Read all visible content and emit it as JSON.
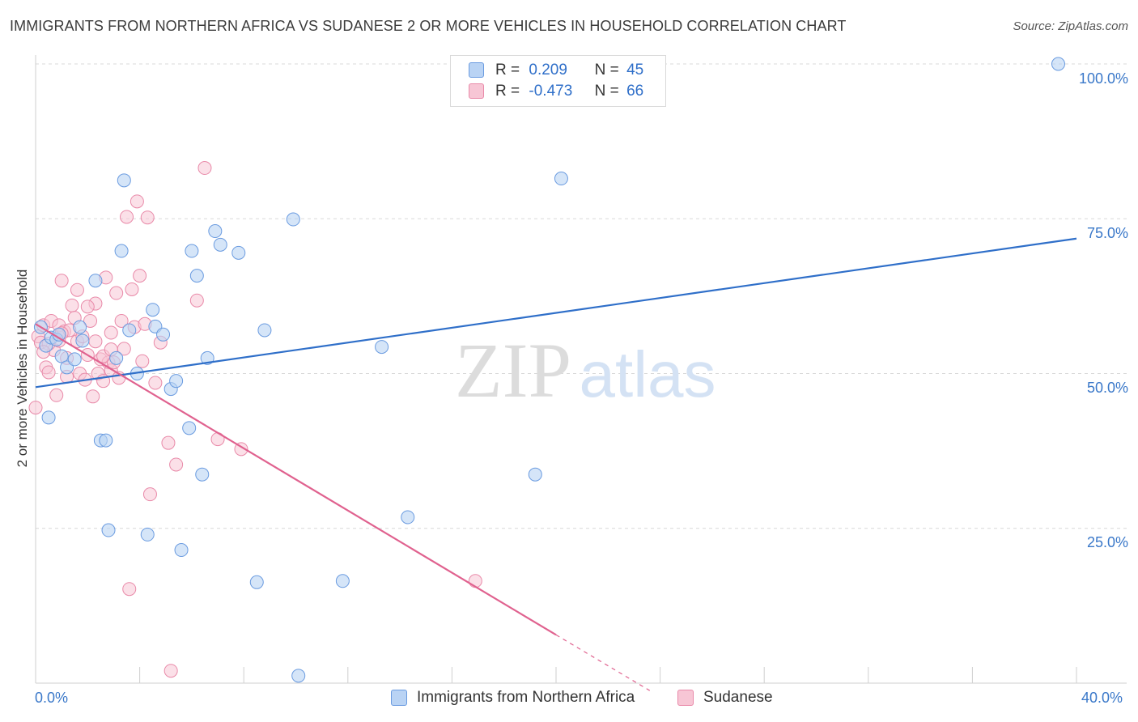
{
  "title": "IMMIGRANTS FROM NORTHERN AFRICA VS SUDANESE 2 OR MORE VEHICLES IN HOUSEHOLD CORRELATION CHART",
  "source": "Source: ZipAtlas.com",
  "watermark": {
    "zip": "ZIP",
    "atlas": "atlas"
  },
  "colors": {
    "blue_fill": "#b9d3f4",
    "blue_stroke": "#6a9be0",
    "blue_line": "#2f6fc9",
    "pink_fill": "#f7c6d5",
    "pink_stroke": "#e98aa9",
    "pink_line": "#e0628f",
    "tick_text": "#3a78c9",
    "grid": "#d8d8d8"
  },
  "legend": {
    "rows": [
      {
        "r_label": "R =",
        "r_value": " 0.209",
        "n_label": "N =",
        "n_value": "45"
      },
      {
        "r_label": "R =",
        "r_value": "-0.473",
        "n_label": "N =",
        "n_value": "66"
      }
    ]
  },
  "bottom_legend": {
    "series1": "Immigrants from Northern Africa",
    "series2": "Sudanese"
  },
  "chart_data": {
    "type": "scatter",
    "title": "IMMIGRANTS FROM NORTHERN AFRICA VS SUDANESE 2 OR MORE VEHICLES IN HOUSEHOLD CORRELATION CHART",
    "xlabel": "",
    "ylabel": "2 or more Vehicles in Household",
    "xlim": [
      0,
      40
    ],
    "ylim": [
      0,
      102
    ],
    "x_tick_labels": [
      "0.0%",
      "40.0%"
    ],
    "y_ticks": [
      25,
      50,
      75,
      100
    ],
    "y_tick_labels": [
      "25.0%",
      "50.0%",
      "75.0%",
      "100.0%"
    ],
    "grid": "horizontal dashed",
    "legend_position": "top-center",
    "series": [
      {
        "name": "Immigrants from Northern Africa",
        "color": "#6a9be0",
        "trend": {
          "x": [
            0,
            40
          ],
          "y": [
            47.8,
            71.8
          ]
        },
        "points": [
          [
            0.2,
            57.5
          ],
          [
            0.4,
            54.5
          ],
          [
            0.5,
            42.9
          ],
          [
            0.6,
            55.8
          ],
          [
            0.8,
            55.5
          ],
          [
            0.9,
            56.3
          ],
          [
            1.0,
            52.8
          ],
          [
            1.2,
            51.0
          ],
          [
            1.5,
            52.3
          ],
          [
            1.7,
            57.5
          ],
          [
            1.8,
            55.3
          ],
          [
            2.3,
            65.0
          ],
          [
            2.5,
            39.2
          ],
          [
            2.7,
            39.2
          ],
          [
            2.8,
            24.7
          ],
          [
            3.1,
            52.5
          ],
          [
            3.3,
            69.8
          ],
          [
            3.4,
            81.2
          ],
          [
            3.6,
            57.0
          ],
          [
            3.9,
            50.0
          ],
          [
            4.3,
            24.0
          ],
          [
            4.5,
            60.3
          ],
          [
            4.6,
            57.6
          ],
          [
            4.9,
            56.3
          ],
          [
            5.2,
            47.5
          ],
          [
            5.4,
            48.8
          ],
          [
            5.6,
            21.5
          ],
          [
            5.9,
            41.2
          ],
          [
            6.0,
            69.8
          ],
          [
            6.2,
            65.8
          ],
          [
            6.4,
            33.7
          ],
          [
            6.6,
            52.5
          ],
          [
            6.9,
            73.0
          ],
          [
            7.1,
            70.8
          ],
          [
            7.8,
            69.5
          ],
          [
            8.5,
            16.3
          ],
          [
            8.8,
            57.0
          ],
          [
            9.9,
            74.9
          ],
          [
            10.1,
            1.2
          ],
          [
            11.8,
            16.5
          ],
          [
            13.3,
            54.3
          ],
          [
            14.3,
            26.8
          ],
          [
            19.2,
            33.7
          ],
          [
            20.2,
            81.5
          ],
          [
            39.3,
            100.0
          ]
        ]
      },
      {
        "name": "Sudanese",
        "color": "#e98aa9",
        "trend": {
          "x": [
            0,
            20
          ],
          "y": [
            58.0,
            7.8
          ]
        },
        "trend_dashed": {
          "x": [
            20,
            23.6
          ],
          "y": [
            7.8,
            -1.2
          ]
        },
        "points": [
          [
            0.0,
            44.5
          ],
          [
            0.1,
            56.0
          ],
          [
            0.2,
            55.0
          ],
          [
            0.3,
            57.8
          ],
          [
            0.4,
            51.0
          ],
          [
            0.5,
            50.2
          ],
          [
            0.6,
            58.5
          ],
          [
            0.7,
            53.8
          ],
          [
            0.8,
            46.5
          ],
          [
            0.9,
            57.8
          ],
          [
            0.9,
            55.3
          ],
          [
            1.0,
            65.0
          ],
          [
            1.1,
            56.8
          ],
          [
            1.2,
            49.5
          ],
          [
            1.2,
            52.5
          ],
          [
            1.3,
            57.0
          ],
          [
            1.4,
            61.0
          ],
          [
            1.5,
            59.0
          ],
          [
            1.6,
            55.2
          ],
          [
            1.7,
            50.0
          ],
          [
            1.8,
            56.0
          ],
          [
            1.9,
            49.0
          ],
          [
            2.0,
            53.0
          ],
          [
            2.1,
            58.5
          ],
          [
            2.2,
            46.3
          ],
          [
            2.3,
            61.3
          ],
          [
            2.3,
            55.2
          ],
          [
            2.4,
            50.0
          ],
          [
            2.5,
            52.3
          ],
          [
            2.6,
            48.8
          ],
          [
            2.7,
            65.5
          ],
          [
            2.8,
            51.8
          ],
          [
            2.9,
            50.5
          ],
          [
            2.9,
            56.6
          ],
          [
            3.0,
            51.8
          ],
          [
            3.1,
            63.0
          ],
          [
            3.2,
            49.3
          ],
          [
            3.3,
            58.5
          ],
          [
            3.4,
            54.0
          ],
          [
            3.5,
            75.3
          ],
          [
            3.6,
            15.2
          ],
          [
            3.7,
            63.6
          ],
          [
            3.8,
            57.5
          ],
          [
            3.9,
            77.8
          ],
          [
            4.0,
            65.8
          ],
          [
            4.1,
            52.0
          ],
          [
            4.2,
            58.0
          ],
          [
            4.3,
            75.2
          ],
          [
            4.4,
            30.5
          ],
          [
            4.6,
            48.5
          ],
          [
            4.8,
            55.0
          ],
          [
            5.1,
            38.8
          ],
          [
            5.2,
            2.0
          ],
          [
            5.4,
            35.3
          ],
          [
            6.2,
            61.8
          ],
          [
            6.5,
            83.2
          ],
          [
            7.0,
            39.4
          ],
          [
            7.9,
            37.8
          ],
          [
            16.9,
            16.5
          ],
          [
            0.5,
            54.8
          ],
          [
            1.0,
            56.5
          ],
          [
            2.0,
            60.8
          ],
          [
            2.6,
            52.8
          ],
          [
            1.6,
            63.5
          ],
          [
            0.3,
            53.5
          ],
          [
            2.9,
            53.9
          ]
        ]
      }
    ]
  }
}
